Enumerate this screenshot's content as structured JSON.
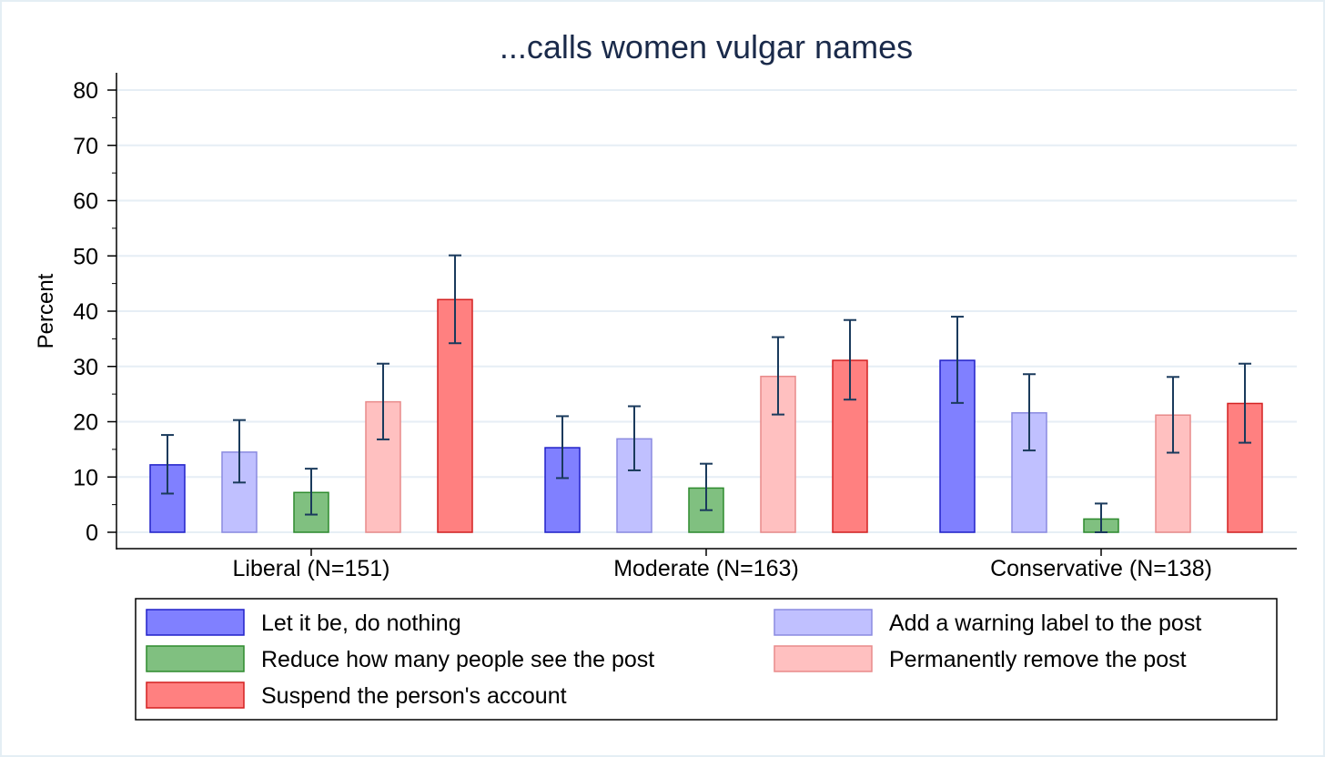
{
  "chart_data": {
    "type": "bar",
    "title": "...calls women vulgar names",
    "ylabel": "Percent",
    "xlabel": "",
    "ylim": [
      0,
      83
    ],
    "yticks": [
      0,
      10,
      20,
      30,
      40,
      50,
      60,
      70,
      80
    ],
    "grid": true,
    "error_bars": true,
    "legend_position": "bottom",
    "categories": [
      "Liberal (N=151)",
      "Moderate (N=163)",
      "Conservative (N=138)"
    ],
    "series": [
      {
        "name": "Let it be, do nothing",
        "color": "#8080ff",
        "edge": "#2020c8",
        "values": [
          12.2,
          15.3,
          31.1
        ],
        "ci_low": [
          7.0,
          9.8,
          23.4
        ],
        "ci_high": [
          17.6,
          21.0,
          39.0
        ]
      },
      {
        "name": "Add a warning label to the post",
        "color": "#c0c0ff",
        "edge": "#8a8ae0",
        "values": [
          14.5,
          16.9,
          21.6
        ],
        "ci_low": [
          9.0,
          11.2,
          14.8
        ],
        "ci_high": [
          20.3,
          22.8,
          28.6
        ]
      },
      {
        "name": "Reduce how many people see the post",
        "color": "#80c080",
        "edge": "#2e8b2e",
        "values": [
          7.2,
          8.0,
          2.4
        ],
        "ci_low": [
          3.2,
          4.0,
          0.0
        ],
        "ci_high": [
          11.5,
          12.4,
          5.2
        ]
      },
      {
        "name": "Permanently remove the post",
        "color": "#ffc0c0",
        "edge": "#e88a8a",
        "values": [
          23.6,
          28.2,
          21.2
        ],
        "ci_low": [
          16.8,
          21.3,
          14.4
        ],
        "ci_high": [
          30.5,
          35.3,
          28.1
        ]
      },
      {
        "name": "Suspend the person's account",
        "color": "#ff8080",
        "edge": "#d42020",
        "values": [
          42.1,
          31.1,
          23.3
        ],
        "ci_low": [
          34.2,
          24.0,
          16.2
        ],
        "ci_high": [
          50.1,
          38.4,
          30.5
        ]
      }
    ]
  }
}
